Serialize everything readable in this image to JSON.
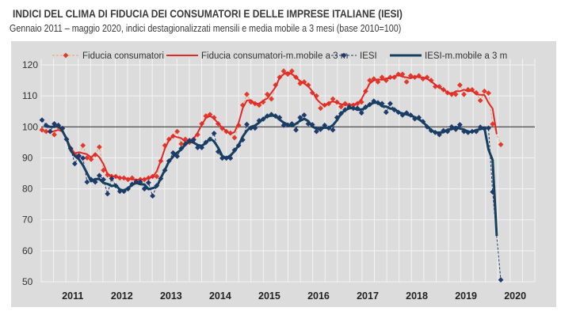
{
  "header": {
    "title": "INDICI DEL CLIMA DI FIDUCIA DEI CONSUMATORI E DELLE IMPRESE ITALIANE (IESI)",
    "subtitle": "Gennaio 2011 – maggio  2020, indici destagionalizzati mensili e media mobile a 3 mesi (base 2010=100)"
  },
  "chart_data": {
    "type": "line",
    "title": "INDICI DEL CLIMA DI FIDUCIA DEI CONSUMATORI E DELLE IMPRESE ITALIANE (IESI)",
    "subtitle": "Gennaio 2011 – maggio  2020, indici destagionalizzati mensili e media mobile a 3 mesi (base 2010=100)",
    "x_start": "2011-01",
    "x_end": "2020-05",
    "x_frequency": "monthly",
    "x_tick_labels": [
      "2011",
      "2012",
      "2013",
      "2014",
      "2015",
      "2016",
      "2017",
      "2018",
      "2019",
      "2020"
    ],
    "ylim": [
      50,
      120
    ],
    "y_ticks": [
      50,
      60,
      70,
      80,
      90,
      100,
      110,
      120
    ],
    "reference_line": 100,
    "grid": true,
    "legend_position": "top",
    "background": "#dcdcdc",
    "series": [
      {
        "name": "Fiducia consumatori",
        "style": "dashed-markers",
        "color": "#e03a2a",
        "line_color": "#f2a070",
        "values": [
          99,
          98.5,
          98.5,
          97.5,
          100,
          99.5,
          96,
          93,
          91,
          90.5,
          94,
          90,
          89.5,
          91,
          93.5,
          86,
          84.5,
          84,
          84,
          83.5,
          83.5,
          83,
          83.5,
          82.5,
          83,
          83,
          83.5,
          84,
          84,
          89,
          94,
          96,
          97,
          98.5,
          94.5,
          96,
          95,
          96,
          97.5,
          101,
          103.5,
          104,
          103,
          101,
          99.5,
          98.5,
          98,
          96.5,
          100.5,
          107,
          110.5,
          108,
          107.5,
          107,
          108,
          110.5,
          109,
          113.5,
          116,
          118,
          117,
          118,
          116,
          114,
          114.5,
          113.5,
          111,
          110,
          106,
          107,
          107.5,
          109,
          108,
          106.5,
          107.5,
          107,
          107,
          107.5,
          108,
          111.5,
          115,
          115.5,
          114.5,
          116,
          115,
          116,
          116,
          117,
          117,
          114.5,
          116.5,
          116,
          116.5,
          115.5,
          116,
          115,
          113,
          113,
          112,
          111,
          110.5,
          110.5,
          113.5,
          110.5,
          112,
          112,
          111,
          108.5,
          111.5,
          110.9,
          100.9,
          null,
          94.3
        ]
      },
      {
        "name": "Fiducia consumatori-m.mobile a 3 m",
        "style": "solid",
        "color": "#e02a2a",
        "derived_from": "Fiducia consumatori"
      },
      {
        "name": "IESI",
        "style": "dashed-markers",
        "color": "#1f3a6e",
        "line_color": "#1f3a6e",
        "values": [
          102.2,
          100.5,
          98.5,
          101,
          100.5,
          99.5,
          96,
          93,
          88.1,
          90.7,
          89.9,
          82.2,
          83,
          82.2,
          84.3,
          83,
          78.4,
          83.3,
          81,
          79.2,
          79.2,
          80,
          81.5,
          82.2,
          82.2,
          80,
          82,
          77.7,
          81,
          83.3,
          86,
          89,
          91.6,
          90.5,
          93,
          94.5,
          95.6,
          95.8,
          93.3,
          93.3,
          95,
          96,
          97.9,
          92,
          89.9,
          89.9,
          89.9,
          92.5,
          94,
          95.8,
          100.8,
          99.6,
          99.6,
          102,
          102.5,
          103.5,
          104,
          103.5,
          103,
          100.5,
          100.6,
          101,
          99,
          103,
          103.8,
          101,
          100.7,
          98.5,
          99.2,
          100.5,
          99.6,
          99,
          103,
          104.3,
          105.5,
          106.4,
          106,
          106,
          104.5,
          106.4,
          107.2,
          108.3,
          107.8,
          107.5,
          104.7,
          107.5,
          105.5,
          104.7,
          103.8,
          104.5,
          103.8,
          102.6,
          103,
          101.7,
          100,
          98.8,
          98.2,
          97.5,
          98.8,
          98.5,
          100,
          99.2,
          100.7,
          98.5,
          98.2,
          98.5,
          98.5,
          99.9,
          99.4,
          99.6,
          79,
          null,
          50.6
        ]
      },
      {
        "name": "IESI-m.mobile a 3 m",
        "style": "solid",
        "color": "#173f5f",
        "derived_from": "IESI"
      }
    ]
  }
}
